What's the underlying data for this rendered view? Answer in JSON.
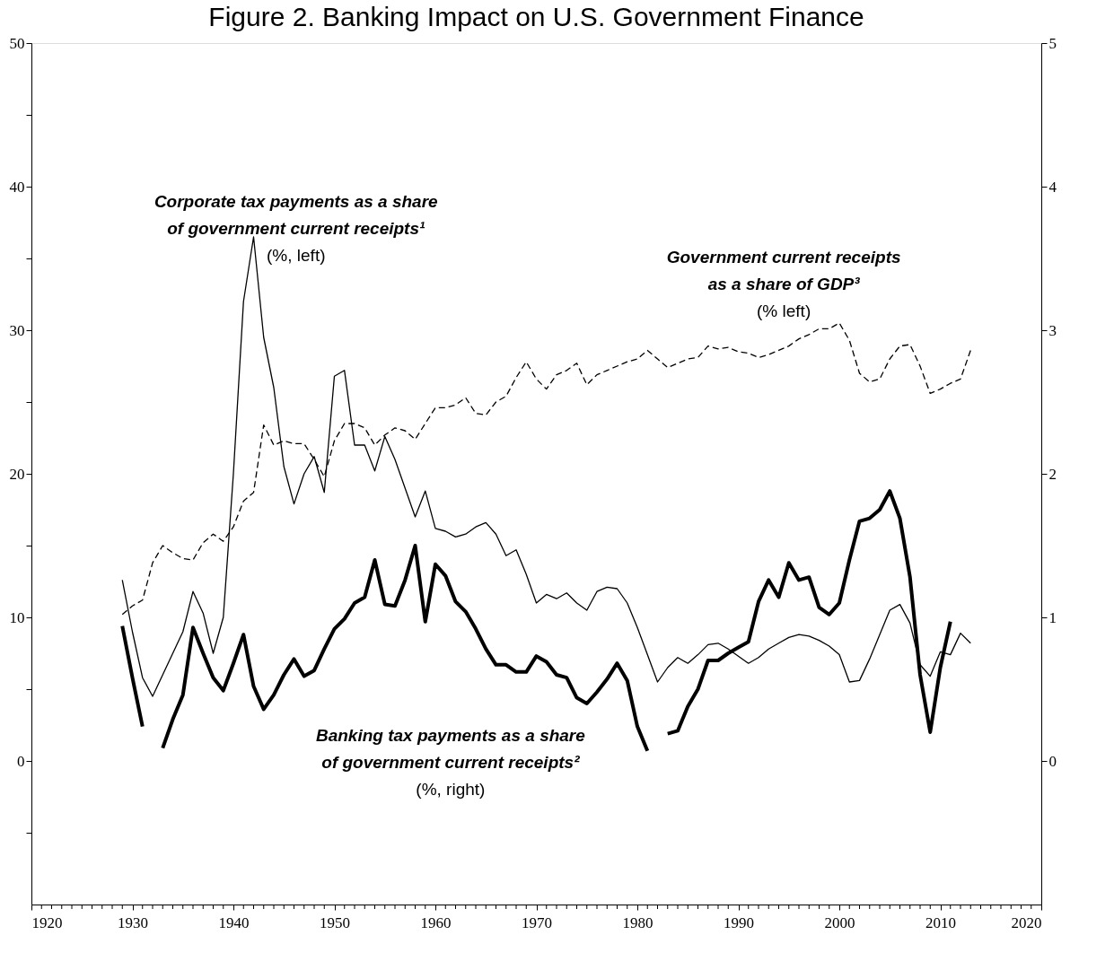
{
  "chart_data": {
    "type": "line",
    "title": "Figure 2. Banking Impact on U.S. Government Finance",
    "x": [
      1929,
      1930,
      1931,
      1932,
      1933,
      1934,
      1935,
      1936,
      1937,
      1938,
      1939,
      1940,
      1941,
      1942,
      1943,
      1944,
      1945,
      1946,
      1947,
      1948,
      1949,
      1950,
      1951,
      1952,
      1953,
      1954,
      1955,
      1956,
      1957,
      1958,
      1959,
      1960,
      1961,
      1962,
      1963,
      1964,
      1965,
      1966,
      1967,
      1968,
      1969,
      1970,
      1971,
      1972,
      1973,
      1974,
      1975,
      1976,
      1977,
      1978,
      1979,
      1980,
      1981,
      1982,
      1983,
      1984,
      1985,
      1986,
      1987,
      1988,
      1989,
      1990,
      1991,
      1992,
      1993,
      1994,
      1995,
      1996,
      1997,
      1998,
      1999,
      2000,
      2001,
      2002,
      2003,
      2004,
      2005,
      2006,
      2007,
      2008,
      2009,
      2010,
      2011,
      2012,
      2013
    ],
    "series": [
      {
        "name": "Corporate tax payments as a share\nof government current receipts¹\n(%, left)",
        "color": "#000000",
        "line_style": "solid",
        "values": [
          12.6,
          9.0,
          5.8,
          4.5,
          6.0,
          7.5,
          9.0,
          11.8,
          10.3,
          7.5,
          10.0,
          20.0,
          32.0,
          36.5,
          29.5,
          26.0,
          20.5,
          17.9,
          20.0,
          21.2,
          18.7,
          26.8,
          27.2,
          22.0,
          22.0,
          20.2,
          22.6,
          21.0,
          19.0,
          17.0,
          18.8,
          16.2,
          16.0,
          15.6,
          15.8,
          16.3,
          16.6,
          15.8,
          14.3,
          14.7,
          13.0,
          11.0,
          11.6,
          11.3,
          11.7,
          11.0,
          10.5,
          11.8,
          12.1,
          12.0,
          11.0,
          9.3,
          7.4,
          5.5,
          6.5,
          7.2,
          6.8,
          7.4,
          8.1,
          8.2,
          7.8,
          7.3,
          6.8,
          7.2,
          7.8,
          8.2,
          8.6,
          8.8,
          8.7,
          8.4,
          8.0,
          7.4,
          5.5,
          5.6,
          7.1,
          8.8,
          10.5,
          10.9,
          9.6,
          6.7,
          5.9,
          7.6,
          7.4,
          8.9,
          8.2
        ]
      },
      {
        "name": "Government current receipts\nas a share of GDP³\n(% left)",
        "color": "#000000",
        "line_style": "dashed",
        "values": [
          10.2,
          10.8,
          11.2,
          13.8,
          15.0,
          14.5,
          14.1,
          14.0,
          15.2,
          15.8,
          15.3,
          16.3,
          18.1,
          18.7,
          23.4,
          22.0,
          22.3,
          22.1,
          22.1,
          21.0,
          19.8,
          22.3,
          23.5,
          23.5,
          23.2,
          22.0,
          22.7,
          23.2,
          23.0,
          22.4,
          23.5,
          24.6,
          24.6,
          24.8,
          25.3,
          24.2,
          24.1,
          25.0,
          25.4,
          26.7,
          27.8,
          26.6,
          25.9,
          26.9,
          27.2,
          27.7,
          26.2,
          26.9,
          27.2,
          27.5,
          27.8,
          28.0,
          28.6,
          28.0,
          27.4,
          27.7,
          28.0,
          28.1,
          28.9,
          28.7,
          28.8,
          28.5,
          28.4,
          28.1,
          28.3,
          28.6,
          28.9,
          29.4,
          29.7,
          30.1,
          30.1,
          30.5,
          29.3,
          27.0,
          26.4,
          26.6,
          28.0,
          28.9,
          29.0,
          27.5,
          25.6,
          25.9,
          26.3,
          26.6,
          28.6
        ]
      },
      {
        "name": "Banking tax payments as a share\nof government current receipts²\n(%, right)",
        "color": "#000000",
        "line_style": "solid",
        "axis": "y2",
        "x": [
          1929,
          1930,
          1931,
          1932,
          1933,
          1934,
          1935,
          1936,
          1937,
          1938,
          1939,
          1940,
          1941,
          1942,
          1943,
          1944,
          1945,
          1946,
          1947,
          1948,
          1949,
          1950,
          1951,
          1952,
          1953,
          1954,
          1955,
          1956,
          1957,
          1958,
          1959,
          1960,
          1961,
          1962,
          1963,
          1964,
          1965,
          1966,
          1967,
          1968,
          1969,
          1970,
          1971,
          1972,
          1973,
          1974,
          1975,
          1976,
          1977,
          1978,
          1979,
          1980,
          1981,
          1982,
          1983,
          1984,
          1985,
          1986,
          1987,
          1988,
          1989,
          1990,
          1991,
          1992,
          1993,
          1994,
          1995,
          1996,
          1997,
          1998,
          1999,
          2000,
          2001,
          2002,
          2003,
          2004,
          2005,
          2006,
          2007,
          2008,
          2009,
          2010,
          2011
        ],
        "values": [
          0.94,
          0.58,
          0.24,
          null,
          0.09,
          0.29,
          0.46,
          0.93,
          0.75,
          0.58,
          0.49,
          0.68,
          0.88,
          0.52,
          0.36,
          0.46,
          0.6,
          0.71,
          0.59,
          0.63,
          0.78,
          0.92,
          0.99,
          1.1,
          1.14,
          1.4,
          1.09,
          1.08,
          1.26,
          1.5,
          0.97,
          1.37,
          1.29,
          1.11,
          1.04,
          0.92,
          0.78,
          0.67,
          0.67,
          0.62,
          0.62,
          0.73,
          0.69,
          0.6,
          0.58,
          0.44,
          0.4,
          0.48,
          0.57,
          0.68,
          0.56,
          0.24,
          0.07,
          null,
          0.19,
          0.21,
          0.38,
          0.5,
          0.7,
          0.7,
          0.75,
          0.79,
          0.83,
          1.11,
          1.26,
          1.14,
          1.38,
          1.26,
          1.28,
          1.07,
          1.02,
          1.1,
          1.4,
          1.67,
          1.69,
          1.75,
          1.88,
          1.69,
          1.28,
          0.6,
          0.2,
          0.65,
          0.97
        ]
      }
    ],
    "xlim": [
      1920,
      2020
    ],
    "xticks": [
      1920,
      {
        "value": 1921,
        "label": null
      },
      {
        "value": 1922,
        "label": null
      },
      {
        "value": 1923,
        "label": null
      },
      {
        "value": 1924,
        "label": null
      },
      {
        "value": 1925,
        "label": null
      },
      {
        "value": 1926,
        "label": null
      },
      {
        "value": 1927,
        "label": null
      },
      {
        "value": 1928,
        "label": null
      },
      {
        "value": 1929,
        "label": null
      },
      1930,
      {
        "value": 1931,
        "label": null
      },
      {
        "value": 1932,
        "label": null
      },
      {
        "value": 1933,
        "label": null
      },
      {
        "value": 1934,
        "label": null
      },
      {
        "value": 1935,
        "label": null
      },
      {
        "value": 1936,
        "label": null
      },
      {
        "value": 1937,
        "label": null
      },
      {
        "value": 1938,
        "label": null
      },
      {
        "value": 1939,
        "label": null
      },
      1940,
      {
        "value": 1941,
        "label": null
      },
      {
        "value": 1942,
        "label": null
      },
      {
        "value": 1943,
        "label": null
      },
      {
        "value": 1944,
        "label": null
      },
      {
        "value": 1945,
        "label": null
      },
      {
        "value": 1946,
        "label": null
      },
      {
        "value": 1947,
        "label": null
      },
      {
        "value": 1948,
        "label": null
      },
      {
        "value": 1949,
        "label": null
      },
      1950,
      {
        "value": 1951,
        "label": null
      },
      {
        "value": 1952,
        "label": null
      },
      {
        "value": 1953,
        "label": null
      },
      {
        "value": 1954,
        "label": null
      },
      {
        "value": 1955,
        "label": null
      },
      {
        "value": 1956,
        "label": null
      },
      {
        "value": 1957,
        "label": null
      },
      {
        "value": 1958,
        "label": null
      },
      {
        "value": 1959,
        "label": null
      },
      1960,
      {
        "value": 1961,
        "label": null
      },
      {
        "value": 1962,
        "label": null
      },
      {
        "value": 1963,
        "label": null
      },
      {
        "value": 1964,
        "label": null
      },
      {
        "value": 1965,
        "label": null
      },
      {
        "value": 1966,
        "label": null
      },
      {
        "value": 1967,
        "label": null
      },
      {
        "value": 1968,
        "label": null
      },
      {
        "value": 1969,
        "label": null
      },
      1970,
      {
        "value": 1971,
        "label": null
      },
      {
        "value": 1972,
        "label": null
      },
      {
        "value": 1973,
        "label": null
      },
      {
        "value": 1974,
        "label": null
      },
      {
        "value": 1975,
        "label": null
      },
      {
        "value": 1976,
        "label": null
      },
      {
        "value": 1977,
        "label": null
      },
      {
        "value": 1978,
        "label": null
      },
      {
        "value": 1979,
        "label": null
      },
      1980,
      {
        "value": 1981,
        "label": null
      },
      {
        "value": 1982,
        "label": null
      },
      {
        "value": 1983,
        "label": null
      },
      {
        "value": 1984,
        "label": null
      },
      {
        "value": 1985,
        "label": null
      },
      {
        "value": 1986,
        "label": null
      },
      {
        "value": 1987,
        "label": null
      },
      {
        "value": 1988,
        "label": null
      },
      {
        "value": 1989,
        "label": null
      },
      1990,
      {
        "value": 1991,
        "label": null
      },
      {
        "value": 1992,
        "label": null
      },
      {
        "value": 1993,
        "label": null
      },
      {
        "value": 1994,
        "label": null
      },
      {
        "value": 1995,
        "label": null
      },
      {
        "value": 1996,
        "label": null
      },
      {
        "value": 1997,
        "label": null
      },
      {
        "value": 1998,
        "label": null
      },
      {
        "value": 1999,
        "label": null
      },
      2000,
      {
        "value": 2001,
        "label": null
      },
      {
        "value": 2002,
        "label": null
      },
      {
        "value": 2003,
        "label": null
      },
      {
        "value": 2004,
        "label": null
      },
      {
        "value": 2005,
        "label": null
      },
      {
        "value": 2006,
        "label": null
      },
      {
        "value": 2007,
        "label": null
      },
      {
        "value": 2008,
        "label": null
      },
      {
        "value": 2009,
        "label": null
      },
      2010,
      {
        "value": 2011,
        "label": null
      },
      {
        "value": 2012,
        "label": null
      },
      {
        "value": 2013,
        "label": null
      },
      {
        "value": 2014,
        "label": null
      },
      {
        "value": 2015,
        "label": null
      },
      {
        "value": 2016,
        "label": null
      },
      {
        "value": 2017,
        "label": null
      },
      {
        "value": 2018,
        "label": null
      },
      {
        "value": 2019,
        "label": null
      },
      2020
    ],
    "ylim": [
      -10,
      50
    ],
    "yticks": [
      {
        "value": -5,
        "label": null
      },
      0,
      {
        "value": 5,
        "label": null
      },
      10,
      {
        "value": 15,
        "label": null
      },
      20,
      {
        "value": 25,
        "label": null
      },
      30,
      {
        "value": 35,
        "label": null
      },
      40,
      {
        "value": 45,
        "label": null
      },
      50
    ],
    "y2lim": [
      -1,
      5
    ],
    "y2ticks": [
      0,
      1,
      2,
      3,
      4,
      5
    ],
    "grid": false
  }
}
